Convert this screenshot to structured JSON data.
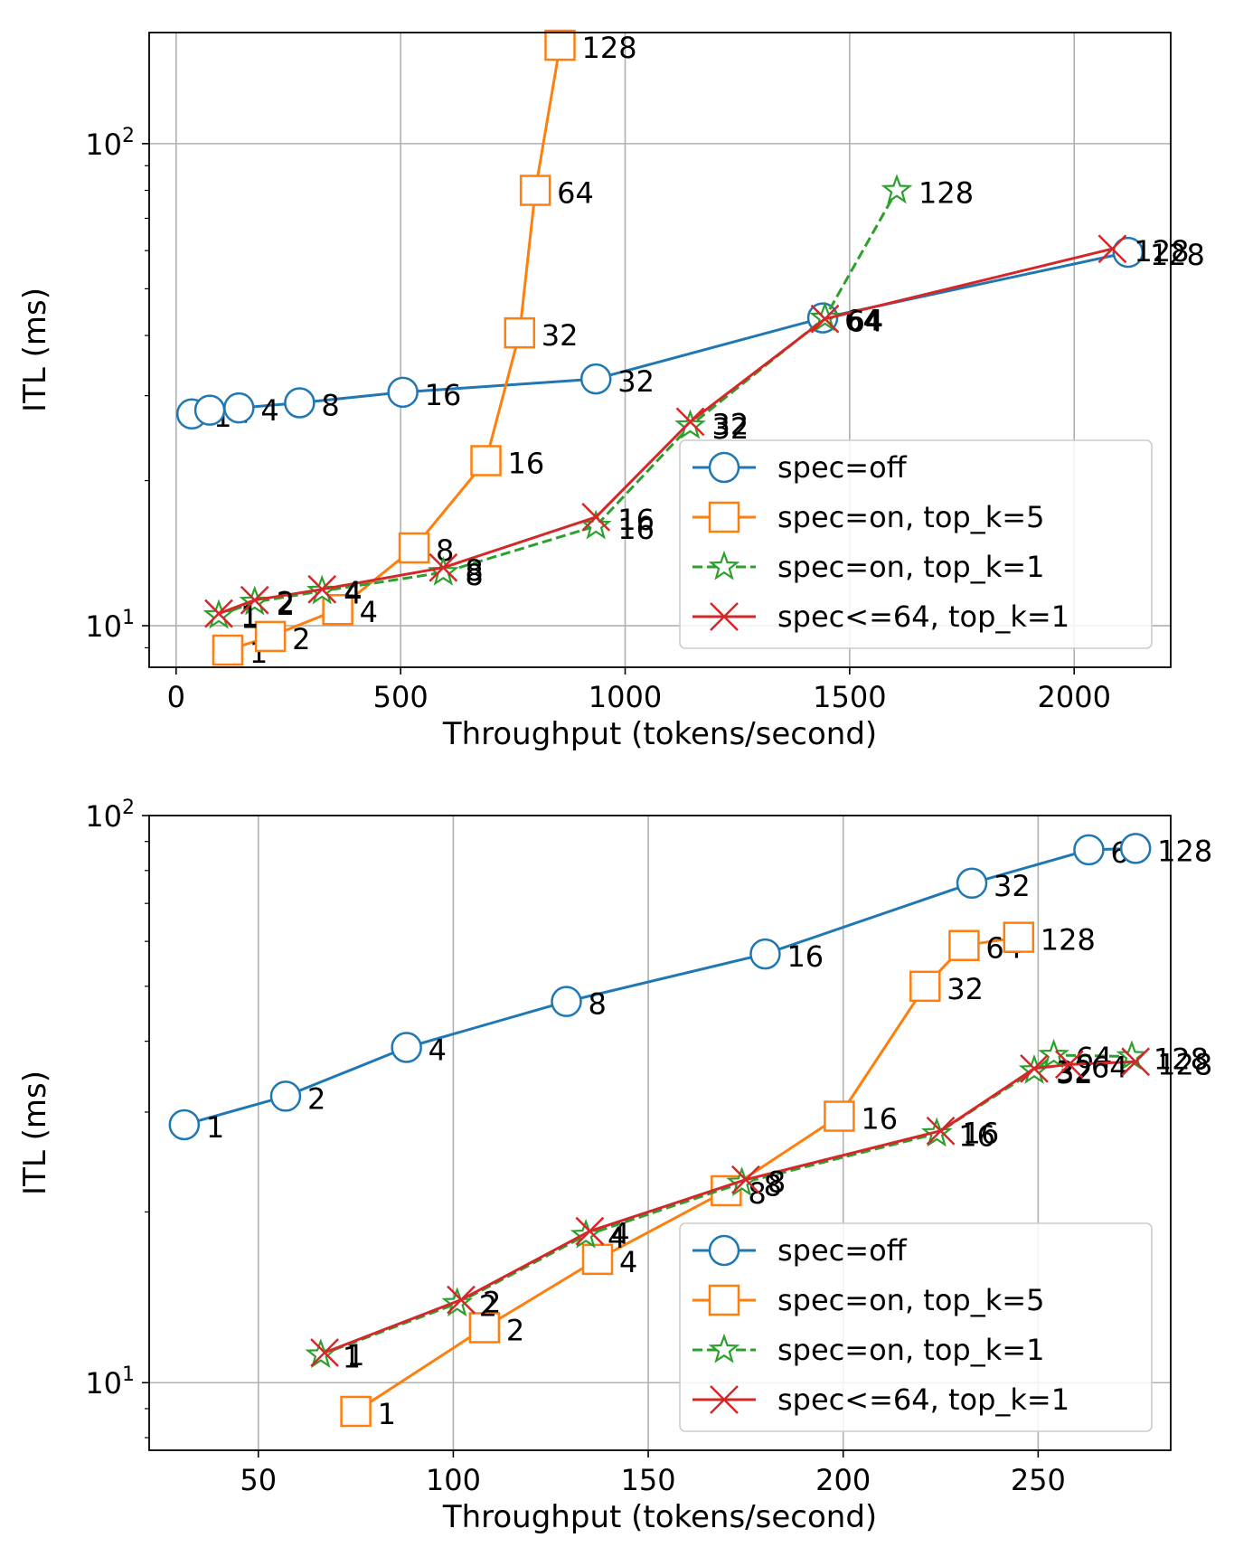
{
  "chart_data": [
    {
      "type": "line",
      "xlabel": "Throughput (tokens/second)",
      "ylabel": "ITL (ms)",
      "xlim": [
        -60,
        2215
      ],
      "ylim": [
        8.2,
        170
      ],
      "yscale": "log",
      "xticks": [
        0,
        500,
        1000,
        1500,
        2000
      ],
      "xtick_labels": [
        "0",
        "500",
        "1000",
        "1500",
        "2000"
      ],
      "yticks": [
        {
          "value": 10,
          "base": "10",
          "exp": "1"
        },
        {
          "value": 100,
          "base": "10",
          "exp": "2"
        }
      ],
      "grid": true,
      "legend_position": "lower right",
      "series": [
        {
          "name": "spec=off",
          "color": "#1f77b4",
          "marker": "circle",
          "dash": "solid",
          "x": [
            35,
            75,
            140,
            275,
            505,
            935,
            1440,
            2120
          ],
          "y": [
            27.5,
            28,
            28.3,
            29,
            30.5,
            32.5,
            43.5,
            59.5
          ],
          "labels": [
            "1",
            "2",
            "4",
            "8",
            "16",
            "32",
            "64",
            "128"
          ]
        },
        {
          "name": "spec=on, top_k=5",
          "color": "#ff7f0e",
          "marker": "square",
          "dash": "solid",
          "x": [
            115,
            210,
            360,
            530,
            690,
            765,
            800,
            855
          ],
          "y": [
            8.9,
            9.5,
            10.8,
            14.5,
            22,
            40.5,
            80,
            160
          ],
          "labels": [
            "1",
            "2",
            "4",
            "8",
            "16",
            "32",
            "64",
            "128"
          ]
        },
        {
          "name": "spec=on, top_k=1",
          "color": "#2ca02c",
          "marker": "star",
          "dash": "dashed",
          "x": [
            95,
            175,
            325,
            595,
            935,
            1145,
            1445,
            1605
          ],
          "y": [
            10.5,
            11.2,
            11.8,
            12.9,
            16.1,
            26,
            43.5,
            80
          ],
          "labels": [
            "1",
            "2",
            "4",
            "8",
            "16",
            "32",
            "64",
            "128"
          ]
        },
        {
          "name": "spec<=64, top_k=1",
          "color": "#d62728",
          "marker": "x",
          "dash": "solid",
          "x": [
            95,
            175,
            325,
            595,
            935,
            1145,
            1445,
            2085
          ],
          "y": [
            10.6,
            11.3,
            11.9,
            13.2,
            16.8,
            26.5,
            43.3,
            60.5
          ],
          "labels": [
            "1",
            "2",
            "4",
            "8",
            "16",
            "32",
            "64",
            "128"
          ]
        }
      ]
    },
    {
      "type": "line",
      "xlabel": "Throughput (tokens/second)",
      "ylabel": "ITL (ms)",
      "xlim": [
        22,
        284
      ],
      "ylim": [
        7.6,
        100
      ],
      "yscale": "log",
      "xticks": [
        50,
        100,
        150,
        200,
        250
      ],
      "xtick_labels": [
        "50",
        "100",
        "150",
        "200",
        "250"
      ],
      "yticks": [
        {
          "value": 10,
          "base": "10",
          "exp": "1"
        },
        {
          "value": 100,
          "base": "10",
          "exp": "2"
        }
      ],
      "grid": true,
      "legend_position": "lower right",
      "series": [
        {
          "name": "spec=off",
          "color": "#1f77b4",
          "marker": "circle",
          "dash": "solid",
          "x": [
            31,
            57,
            88,
            129,
            180,
            233,
            263,
            275
          ],
          "y": [
            28.5,
            32,
            39,
            47,
            57,
            76,
            87,
            87.5
          ],
          "labels": [
            "1",
            "2",
            "4",
            "8",
            "16",
            "32",
            "64",
            "128"
          ]
        },
        {
          "name": "spec=on, top_k=5",
          "color": "#ff7f0e",
          "marker": "square",
          "dash": "solid",
          "x": [
            75,
            108,
            137,
            170,
            199,
            221,
            231,
            245
          ],
          "y": [
            8.9,
            12.5,
            16.5,
            21.8,
            29.5,
            50,
            59,
            61
          ],
          "labels": [
            "1",
            "2",
            "4",
            "8",
            "16",
            "32",
            "64",
            "128"
          ]
        },
        {
          "name": "spec=on, top_k=1",
          "color": "#2ca02c",
          "marker": "star",
          "dash": "dashed",
          "x": [
            66,
            101,
            134,
            174,
            224,
            249,
            254,
            274
          ],
          "y": [
            11.2,
            13.8,
            18.2,
            22.5,
            27.5,
            35.5,
            37.8,
            37.6
          ],
          "labels": [
            "1",
            "2",
            "4",
            "8",
            "16",
            "32",
            "64",
            "128"
          ]
        },
        {
          "name": "spec<=64, top_k=1",
          "color": "#d62728",
          "marker": "x",
          "dash": "solid",
          "x": [
            67,
            102,
            135,
            175,
            225,
            249,
            258,
            275
          ],
          "y": [
            11.3,
            14,
            18.5,
            22.8,
            27.8,
            35.8,
            36.4,
            36.8
          ],
          "labels": [
            "1",
            "2",
            "4",
            "8",
            "16",
            "32",
            "64",
            "128"
          ]
        }
      ]
    }
  ]
}
